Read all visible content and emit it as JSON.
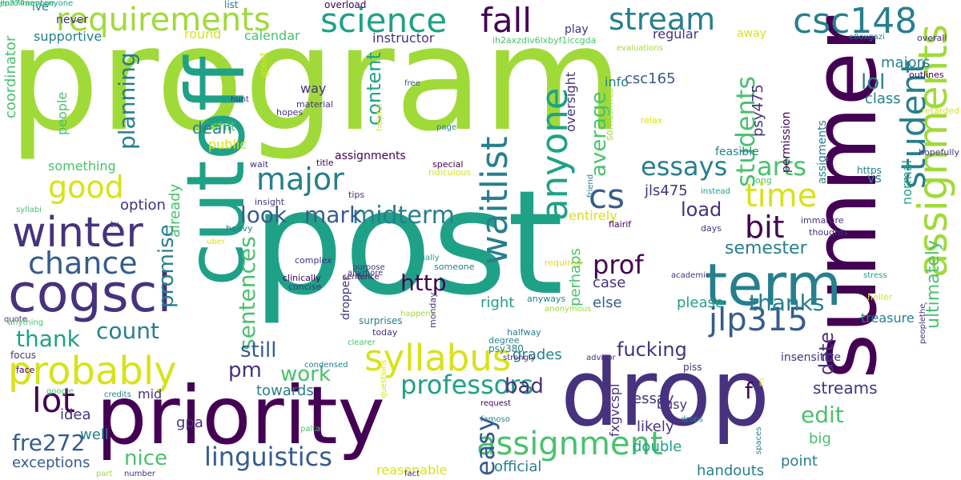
{
  "palette": {
    "dark_purple": "#440154",
    "indigo": "#46327e",
    "blue": "#365c8d",
    "steel": "#277f8e",
    "teal": "#1fa187",
    "green": "#4ac16d",
    "lime": "#a0da39",
    "yellow": "#d8e219"
  },
  "words": [
    {
      "text": "program",
      "color": "lime"
    },
    {
      "text": "post",
      "color": "teal"
    },
    {
      "text": "summer",
      "color": "dark_purple"
    },
    {
      "text": "drop",
      "color": "indigo"
    },
    {
      "text": "cutoff",
      "color": "teal"
    },
    {
      "text": "priority",
      "color": "dark_purple"
    },
    {
      "text": "term",
      "color": "steel"
    },
    {
      "text": "cogsci",
      "color": "indigo"
    },
    {
      "text": "winter",
      "color": "indigo"
    },
    {
      "text": "probably",
      "color": "yellow"
    },
    {
      "text": "requirements",
      "color": "lime"
    },
    {
      "text": "science",
      "color": "teal"
    },
    {
      "text": "csc148",
      "color": "steel"
    },
    {
      "text": "stream",
      "color": "steel"
    },
    {
      "text": "fall",
      "color": "dark_purple"
    },
    {
      "text": "syllabus",
      "color": "yellow"
    },
    {
      "text": "assignment",
      "color": "green"
    },
    {
      "text": "assignments",
      "color": "lime"
    },
    {
      "text": "waitlist",
      "color": "steel"
    },
    {
      "text": "anyone",
      "color": "teal"
    },
    {
      "text": "good",
      "color": "yellow"
    },
    {
      "text": "major",
      "color": "steel"
    },
    {
      "text": "chance",
      "color": "blue"
    },
    {
      "text": "jlp315",
      "color": "blue"
    },
    {
      "text": "student",
      "color": "steel"
    },
    {
      "text": "lot",
      "color": "dark_purple"
    },
    {
      "text": "time",
      "color": "yellow"
    },
    {
      "text": "cs",
      "color": "blue"
    },
    {
      "text": "bit",
      "color": "dark_purple"
    },
    {
      "text": "essays",
      "color": "steel"
    },
    {
      "text": "arts",
      "color": "green"
    },
    {
      "text": "professors",
      "color": "teal"
    },
    {
      "text": "linguistics",
      "color": "blue"
    },
    {
      "text": "students",
      "color": "green"
    },
    {
      "text": "prof",
      "color": "dark_purple"
    },
    {
      "text": "thanks",
      "color": "steel"
    },
    {
      "text": "midterm",
      "color": "steel"
    },
    {
      "text": "work",
      "color": "green"
    },
    {
      "text": "count",
      "color": "steel"
    },
    {
      "text": "thank",
      "color": "teal"
    },
    {
      "text": "fre272",
      "color": "blue"
    },
    {
      "text": "nice",
      "color": "green"
    },
    {
      "text": "pm",
      "color": "indigo"
    },
    {
      "text": "mark",
      "color": "blue"
    },
    {
      "text": "look",
      "color": "blue"
    },
    {
      "text": "sentences",
      "color": "green"
    },
    {
      "text": "http",
      "color": "dark_purple"
    },
    {
      "text": "still",
      "color": "blue"
    },
    {
      "text": "easy",
      "color": "blue"
    },
    {
      "text": "bad",
      "color": "indigo"
    },
    {
      "text": "edit",
      "color": "green"
    },
    {
      "text": "f",
      "color": "dark_purple"
    },
    {
      "text": "fucking",
      "color": "indigo"
    },
    {
      "text": "content",
      "color": "teal"
    },
    {
      "text": "planning",
      "color": "steel"
    },
    {
      "text": "average",
      "color": "green"
    },
    {
      "text": "semester",
      "color": "steel"
    },
    {
      "text": "load",
      "color": "indigo"
    },
    {
      "text": "lol",
      "color": "steel"
    },
    {
      "text": "promise",
      "color": "steel"
    },
    {
      "text": "dean",
      "color": "steel"
    },
    {
      "text": "case",
      "color": "indigo"
    },
    {
      "text": "please",
      "color": "teal"
    },
    {
      "text": "right",
      "color": "teal"
    },
    {
      "text": "date",
      "color": "indigo"
    },
    {
      "text": "jls475",
      "color": "indigo"
    },
    {
      "text": "csc165",
      "color": "blue"
    },
    {
      "text": "psy475",
      "color": "indigo"
    },
    {
      "text": "class",
      "color": "steel"
    },
    {
      "text": "ultimately",
      "color": "green"
    },
    {
      "text": "majors",
      "color": "steel"
    },
    {
      "text": "streams",
      "color": "indigo"
    },
    {
      "text": "else",
      "color": "blue"
    },
    {
      "text": "towards",
      "color": "steel"
    },
    {
      "text": "mid",
      "color": "indigo"
    },
    {
      "text": "idea",
      "color": "indigo"
    },
    {
      "text": "well",
      "color": "steel"
    },
    {
      "text": "gpa",
      "color": "indigo"
    },
    {
      "text": "exceptions",
      "color": "blue"
    },
    {
      "text": "grades",
      "color": "steel"
    },
    {
      "text": "perhaps",
      "color": "green"
    },
    {
      "text": "likely",
      "color": "indigo"
    },
    {
      "text": "double",
      "color": "teal"
    },
    {
      "text": "official",
      "color": "steel"
    },
    {
      "text": "handouts",
      "color": "steel"
    },
    {
      "text": "point",
      "color": "steel"
    },
    {
      "text": "big",
      "color": "green"
    },
    {
      "text": "busy",
      "color": "indigo"
    },
    {
      "text": "essay",
      "color": "indigo"
    },
    {
      "text": "reasonable",
      "color": "yellow"
    },
    {
      "text": "fxgvcspl",
      "color": "indigo"
    },
    {
      "text": "oversight",
      "color": "indigo"
    },
    {
      "text": "entirely",
      "color": "yellow"
    },
    {
      "text": "option",
      "color": "indigo"
    },
    {
      "text": "already",
      "color": "green"
    },
    {
      "text": "shit",
      "color": "green"
    },
    {
      "text": "public",
      "color": "yellow"
    },
    {
      "text": "something",
      "color": "green"
    },
    {
      "text": "people",
      "color": "green"
    },
    {
      "text": "coordinator",
      "color": "green"
    },
    {
      "text": "supportive",
      "color": "steel"
    },
    {
      "text": "ive",
      "color": "steel"
    },
    {
      "text": "never",
      "color": "indigo"
    },
    {
      "text": "list",
      "color": "steel"
    },
    {
      "text": "overload",
      "color": "dark_purple"
    },
    {
      "text": "play",
      "color": "indigo"
    },
    {
      "text": "away",
      "color": "yellow"
    },
    {
      "text": "info",
      "color": "steel"
    },
    {
      "text": "regular",
      "color": "indigo"
    },
    {
      "text": "round",
      "color": "yellow"
    },
    {
      "text": "calendar",
      "color": "green"
    },
    {
      "text": "instructor",
      "color": "indigo"
    },
    {
      "text": "way",
      "color": "indigo"
    },
    {
      "text": "ih2axzdiv6lxbyf1iccgda",
      "color": "green"
    },
    {
      "text": "e8oxgazi",
      "color": "steel"
    },
    {
      "text": "overall",
      "color": "indigo"
    },
    {
      "text": "outlines",
      "color": "dark_purple"
    },
    {
      "text": "evaluations",
      "color": "lime"
    },
    {
      "text": "great",
      "color": "yellow"
    },
    {
      "text": "hunt",
      "color": "indigo"
    },
    {
      "text": "hopes",
      "color": "indigo"
    },
    {
      "text": "material",
      "color": "indigo"
    },
    {
      "text": "helpful",
      "color": "yellow"
    },
    {
      "text": "free",
      "color": "blue"
    },
    {
      "text": "page",
      "color": "steel"
    },
    {
      "text": "relax",
      "color": "yellow"
    },
    {
      "text": "retarded",
      "color": "yellow"
    },
    {
      "text": "permission",
      "color": "dark_purple"
    },
    {
      "text": "sometimes",
      "color": "lime"
    },
    {
      "text": "assigments",
      "color": "steel"
    },
    {
      "text": "assignments",
      "color": "dark_purple"
    },
    {
      "text": "title",
      "color": "dark_purple"
    },
    {
      "text": "wait",
      "color": "indigo"
    },
    {
      "text": "special",
      "color": "dark_purple"
    },
    {
      "text": "ridiculous",
      "color": "yellow"
    },
    {
      "text": "tips",
      "color": "indigo"
    },
    {
      "text": "insight",
      "color": "indigo"
    },
    {
      "text": "friend",
      "color": "steel"
    },
    {
      "text": "long",
      "color": "green"
    },
    {
      "text": "instead",
      "color": "teal"
    },
    {
      "text": "feasible",
      "color": "steel"
    },
    {
      "text": "https",
      "color": "steel"
    },
    {
      "text": "hopefully",
      "color": "indigo"
    },
    {
      "text": "vs",
      "color": "steel"
    },
    {
      "text": "normal",
      "color": "teal"
    },
    {
      "text": "syllabi",
      "color": "green"
    },
    {
      "text": "tx",
      "color": "indigo"
    },
    {
      "text": "heavy",
      "color": "steel"
    },
    {
      "text": "flairif",
      "color": "dark_purple"
    },
    {
      "text": "thoughts",
      "color": "indigo"
    },
    {
      "text": "days",
      "color": "indigo"
    },
    {
      "text": "immature",
      "color": "indigo"
    },
    {
      "text": "uber",
      "color": "yellow"
    },
    {
      "text": "anymore",
      "color": "indigo"
    },
    {
      "text": "sentence",
      "color": "dark_purple"
    },
    {
      "text": "purpose",
      "color": "indigo"
    },
    {
      "text": "academic",
      "color": "indigo"
    },
    {
      "text": "complex",
      "color": "indigo"
    },
    {
      "text": "usually",
      "color": "teal"
    },
    {
      "text": "someone",
      "color": "steel"
    },
    {
      "text": "required",
      "color": "yellow"
    },
    {
      "text": "stress",
      "color": "teal"
    },
    {
      "text": "clinically",
      "color": "dark_purple"
    },
    {
      "text": "concise",
      "color": "indigo"
    },
    {
      "text": "dropper",
      "color": "indigo"
    },
    {
      "text": "psy380",
      "color": "steel"
    },
    {
      "text": "monday",
      "color": "indigo"
    },
    {
      "text": "anyways",
      "color": "steel"
    },
    {
      "text": "heller",
      "color": "yellow"
    },
    {
      "text": "peoplethe",
      "color": "indigo"
    },
    {
      "text": "quote",
      "color": "indigo"
    },
    {
      "text": "anything",
      "color": "green"
    },
    {
      "text": "happens",
      "color": "lime"
    },
    {
      "text": "anonymous",
      "color": "lime"
    },
    {
      "text": "surprises",
      "color": "steel"
    },
    {
      "text": "today",
      "color": "indigo"
    },
    {
      "text": "halfway",
      "color": "steel"
    },
    {
      "text": "degree",
      "color": "steel"
    },
    {
      "text": "focus",
      "color": "indigo"
    },
    {
      "text": "face",
      "color": "dark_purple"
    },
    {
      "text": "treasure",
      "color": "steel"
    },
    {
      "text": "insensitive",
      "color": "indigo"
    },
    {
      "text": "clearer",
      "color": "green"
    },
    {
      "text": "questions",
      "color": "yellow"
    },
    {
      "text": "strongly",
      "color": "indigo"
    },
    {
      "text": "advisor",
      "color": "indigo"
    },
    {
      "text": "piss",
      "color": "indigo"
    },
    {
      "text": "condensed",
      "color": "steel"
    },
    {
      "text": "rn",
      "color": "yellow"
    },
    {
      "text": "google",
      "color": "green"
    },
    {
      "text": "credits",
      "color": "steel"
    },
    {
      "text": "request",
      "color": "dark_purple"
    },
    {
      "text": "famoso",
      "color": "steel"
    },
    {
      "text": "drops",
      "color": "steel"
    },
    {
      "text": "spaces",
      "color": "steel"
    },
    {
      "text": "palta",
      "color": "green"
    },
    {
      "text": "part",
      "color": "lime"
    },
    {
      "text": "number",
      "color": "indigo"
    },
    {
      "text": "fact",
      "color": "indigo"
    },
    {
      "text": "jlp374anyone",
      "color": "green"
    },
    {
      "text": "enrollmentanyone",
      "color": "teal"
    }
  ]
}
